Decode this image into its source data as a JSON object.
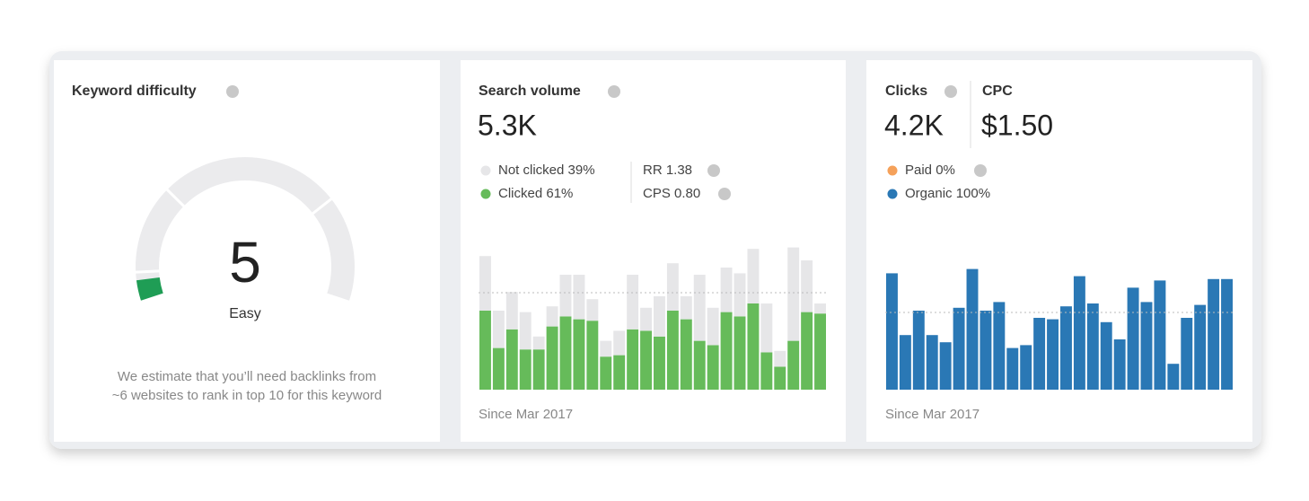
{
  "cards": [
    {
      "title": "Keyword difficulty",
      "gauge": {
        "value": 5,
        "range": [
          0,
          100
        ],
        "color": "#1f9d55",
        "track_color": "#ebebed"
      },
      "score_label": "Easy",
      "note_lines": [
        "We estimate that you’ll need backlinks from",
        "~6 websites to rank in top 10 for this keyword"
      ]
    },
    {
      "title": "Search volume",
      "headline": "5.3K",
      "stats": [
        "RR 1.38",
        "CPS 0.80"
      ],
      "chart": {
        "type": "bar",
        "stacked": true,
        "ylim": [
          0,
          100
        ],
        "series": [
          {
            "name": "Clicked 61%",
            "color": "#66bb5a",
            "values": [
              55,
              29,
              42,
              28,
              28,
              44,
              51,
              49,
              48,
              23,
              24,
              42,
              41,
              37,
              55,
              49,
              34,
              31,
              54,
              51,
              60,
              26,
              16,
              34,
              54,
              53
            ]
          },
          {
            "name": "Not clicked 39%",
            "color": "#e6e6e8",
            "values": [
              38,
              26,
              26,
              26,
              9,
              14,
              29,
              31,
              15,
              11,
              17,
              38,
              16,
              28,
              33,
              16,
              46,
              26,
              31,
              30,
              38,
              34,
              11,
              65,
              36,
              7
            ]
          }
        ]
      },
      "footer": "Since Mar 2017"
    },
    {
      "title": "Clicks",
      "title2": "CPC",
      "headline": "4.2K",
      "headline2": "$1.50",
      "chart": {
        "type": "bar",
        "stacked": false,
        "ylim": [
          0,
          100
        ],
        "series": [
          {
            "name": "Paid 0%",
            "color": "#f5a15a",
            "values": [
              0,
              0,
              0,
              0,
              0,
              0,
              0,
              0,
              0,
              0,
              0,
              0,
              0,
              0,
              0,
              0,
              0,
              0,
              0,
              0,
              0,
              0,
              0,
              0,
              0,
              0
            ]
          },
          {
            "name": "Organic 100%",
            "color": "#2a78b5",
            "values": [
              81,
              38,
              55,
              38,
              33,
              57,
              84,
              55,
              61,
              29,
              31,
              50,
              49,
              58,
              79,
              60,
              47,
              35,
              71,
              61,
              76,
              18,
              50,
              59,
              77,
              77
            ]
          }
        ]
      },
      "footer": "Since Mar 2017"
    }
  ]
}
